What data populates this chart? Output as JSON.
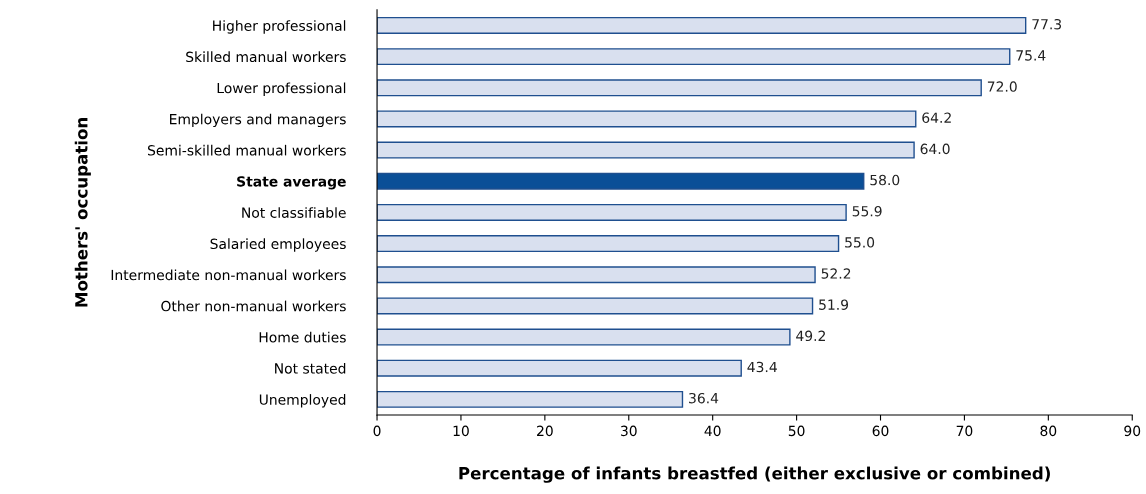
{
  "chart_data": {
    "type": "bar",
    "orientation": "horizontal",
    "xlabel": "Percentage of infants breastfed (either exclusive or combined)",
    "ylabel": "Mothers' occupation",
    "categories": [
      "Higher professional",
      "Skilled manual workers",
      "Lower professional",
      "Employers and managers",
      "Semi-skilled manual workers",
      "State average",
      "Not classifiable",
      "Salaried employees",
      "Intermediate non-manual workers",
      "Other non-manual workers",
      "Home duties",
      "Not stated",
      "Unemployed"
    ],
    "values": [
      77.3,
      75.4,
      72.0,
      64.2,
      64.0,
      58.0,
      55.9,
      55.0,
      52.2,
      51.9,
      49.2,
      43.4,
      36.4
    ],
    "value_labels": [
      "77.3",
      "75.4",
      "72.0",
      "64.2",
      "64.0",
      "58.0",
      "55.9",
      "55.0",
      "52.2",
      "51.9",
      "49.2",
      "43.4",
      "36.4"
    ],
    "colors": [
      "#d9e0ef",
      "#d9e0ef",
      "#d9e0ef",
      "#d9e0ef",
      "#d9e0ef",
      "#0a4f97",
      "#d9e0ef",
      "#d9e0ef",
      "#d9e0ef",
      "#d9e0ef",
      "#d9e0ef",
      "#d9e0ef",
      "#d9e0ef"
    ],
    "xlim": [
      0,
      90
    ],
    "xticks": [
      0,
      10,
      20,
      30,
      40,
      50,
      60,
      70,
      80,
      90
    ],
    "grid": false,
    "legend": false
  }
}
